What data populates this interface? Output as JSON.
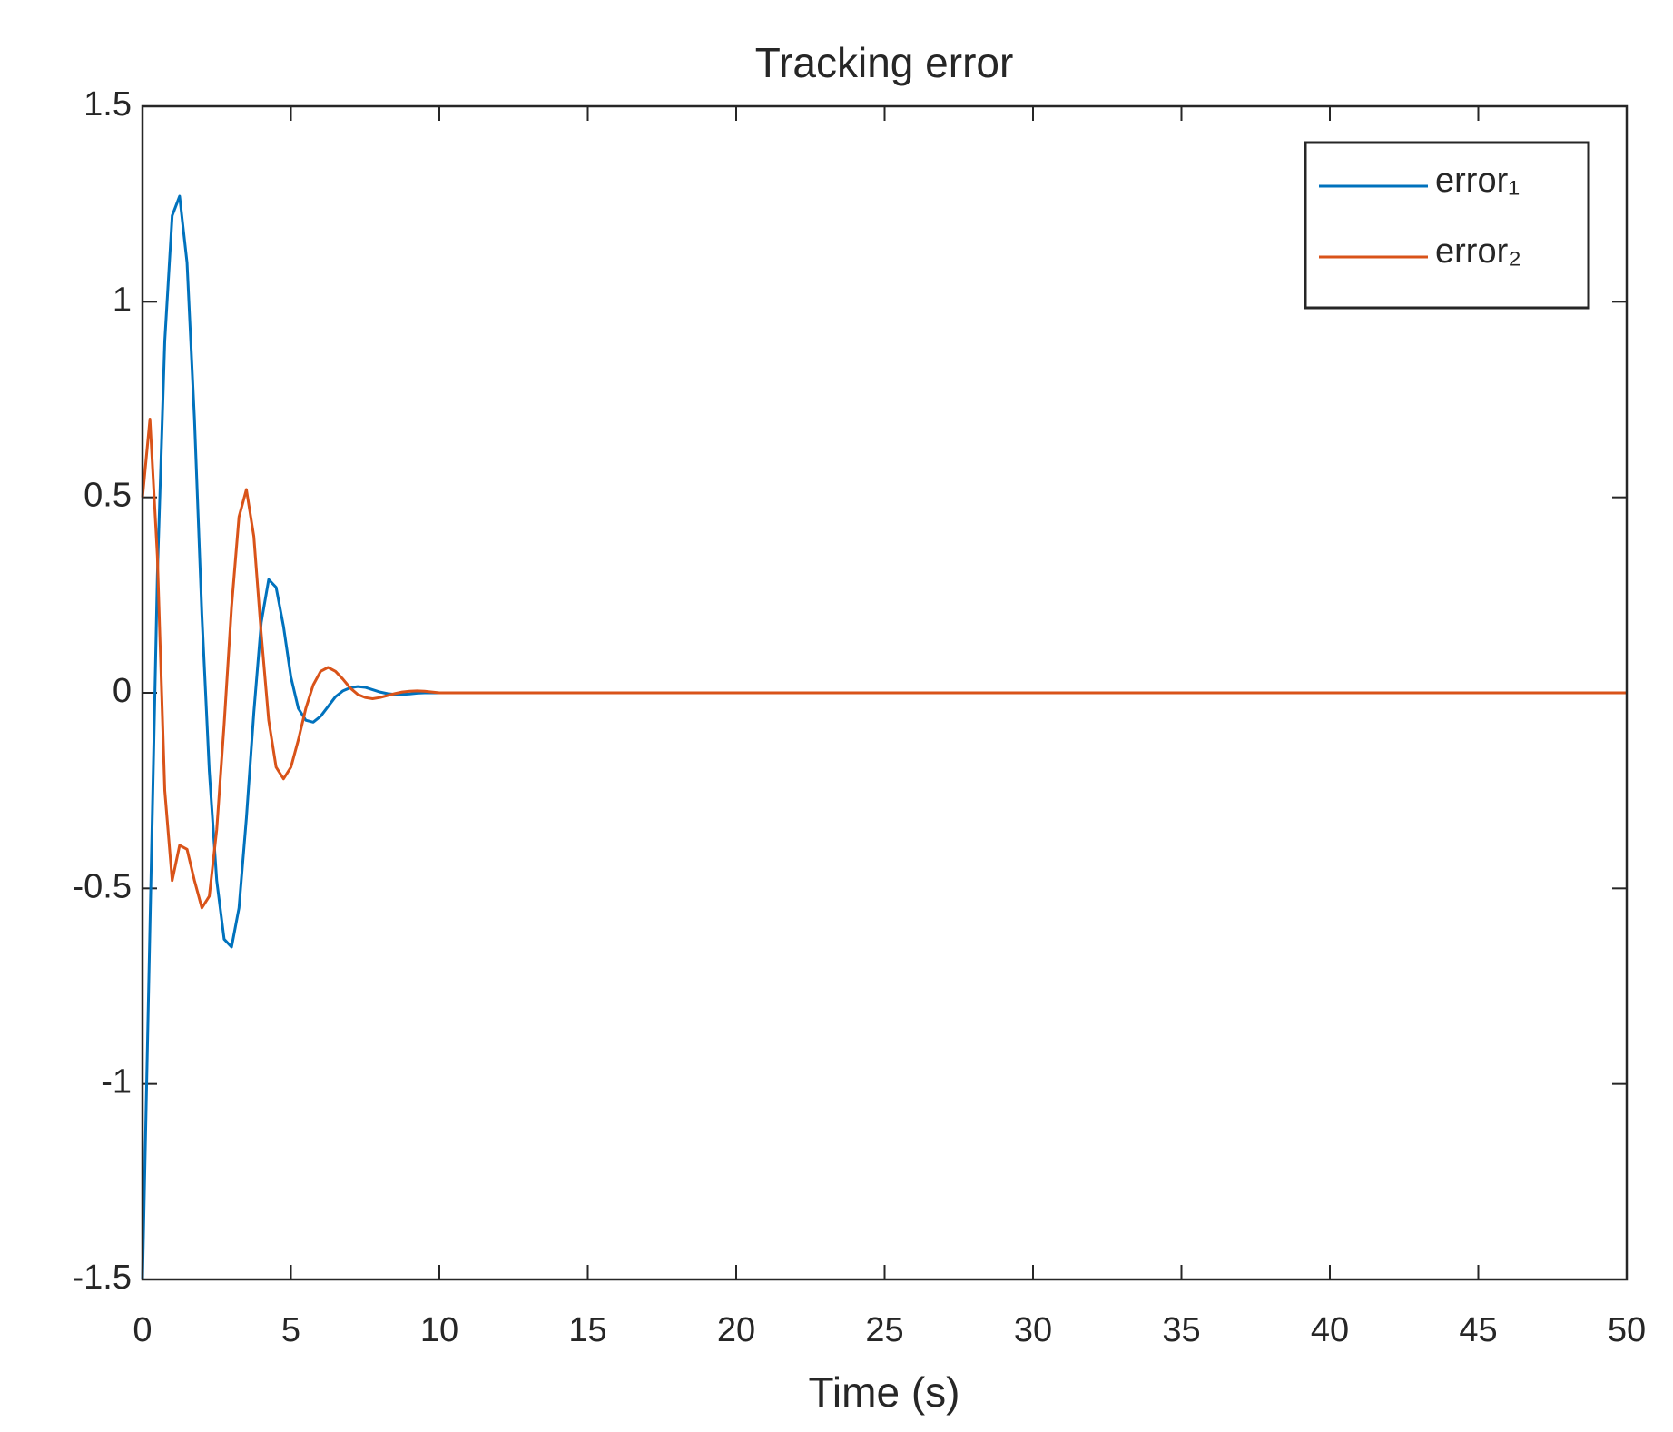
{
  "chart_data": {
    "type": "line",
    "title": "Tracking error",
    "x_label": "Time (s)",
    "x": [
      0,
      0.25,
      0.5,
      0.75,
      1,
      1.25,
      1.5,
      1.75,
      2,
      2.25,
      2.5,
      2.75,
      3,
      3.25,
      3.5,
      3.75,
      4,
      4.25,
      4.5,
      4.75,
      5,
      5.25,
      5.5,
      5.75,
      6,
      6.25,
      6.5,
      6.75,
      7,
      7.25,
      7.5,
      7.75,
      8,
      8.25,
      8.5,
      8.75,
      9,
      9.25,
      9.5,
      9.75,
      10,
      15,
      20,
      25,
      30,
      35,
      40,
      45,
      50
    ],
    "series": [
      {
        "name": "error₁",
        "color": "#0072bd",
        "values": [
          -1.5,
          -0.6,
          0.3,
          0.9,
          1.22,
          1.27,
          1.1,
          0.7,
          0.2,
          -0.2,
          -0.48,
          -0.63,
          -0.65,
          -0.55,
          -0.32,
          -0.05,
          0.18,
          0.29,
          0.27,
          0.17,
          0.04,
          -0.04,
          -0.07,
          -0.075,
          -0.06,
          -0.035,
          -0.01,
          0.005,
          0.013,
          0.016,
          0.014,
          0.008,
          0.002,
          -0.002,
          -0.004,
          -0.004,
          -0.003,
          -0.001,
          0,
          0,
          0,
          0,
          0,
          0,
          0,
          0,
          0,
          0,
          0
        ]
      },
      {
        "name": "error₂",
        "color": "#d95319",
        "values": [
          0.5,
          0.7,
          0.35,
          -0.25,
          -0.48,
          -0.39,
          -0.4,
          -0.48,
          -0.55,
          -0.52,
          -0.35,
          -0.08,
          0.22,
          0.45,
          0.52,
          0.4,
          0.15,
          -0.07,
          -0.19,
          -0.22,
          -0.19,
          -0.12,
          -0.04,
          0.02,
          0.055,
          0.065,
          0.055,
          0.035,
          0.012,
          -0.004,
          -0.012,
          -0.015,
          -0.012,
          -0.007,
          -0.002,
          0.002,
          0.004,
          0.005,
          0.004,
          0.002,
          0,
          0,
          0,
          0,
          0,
          0,
          0,
          0,
          0
        ]
      }
    ],
    "xlim": [
      0,
      50
    ],
    "xticks": [
      0,
      5,
      10,
      15,
      20,
      25,
      30,
      35,
      40,
      45,
      50
    ],
    "ylim": [
      -1.5,
      1.5
    ],
    "yticks": [
      -1.5,
      -1,
      -0.5,
      0,
      0.5,
      1,
      1.5
    ],
    "legend": "upper right"
  }
}
